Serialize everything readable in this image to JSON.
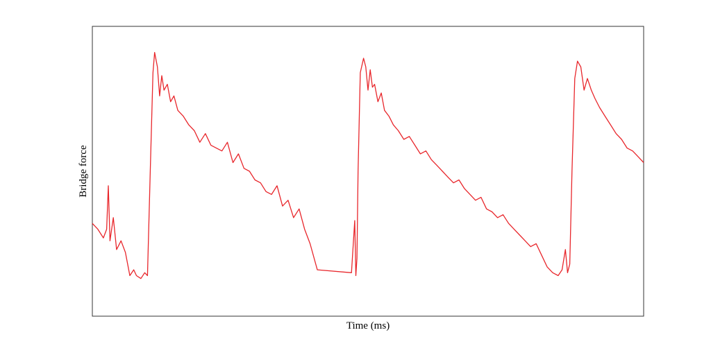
{
  "chart_data": {
    "type": "line",
    "title": "",
    "xlabel": "Time (ms)",
    "ylabel": "Bridge force",
    "xlim": [
      0,
      1
    ],
    "ylim": [
      0,
      1
    ],
    "grid": false,
    "legend": "none",
    "tick_labels": false,
    "line_color": "#e8262b",
    "frame_color": "#333333",
    "series": [
      {
        "values_description_free": true,
        "x": [
          0.0,
          0.01,
          0.02,
          0.026,
          0.029,
          0.032,
          0.038,
          0.044,
          0.052,
          0.06,
          0.068,
          0.075,
          0.08,
          0.088,
          0.095,
          0.1,
          0.105,
          0.11,
          0.113,
          0.118,
          0.122,
          0.126,
          0.13,
          0.136,
          0.142,
          0.148,
          0.155,
          0.165,
          0.175,
          0.185,
          0.195,
          0.205,
          0.215,
          0.225,
          0.235,
          0.245,
          0.255,
          0.265,
          0.275,
          0.285,
          0.295,
          0.305,
          0.315,
          0.325,
          0.335,
          0.345,
          0.355,
          0.365,
          0.375,
          0.385,
          0.395,
          0.408,
          0.47,
          0.476,
          0.478,
          0.48,
          0.482,
          0.486,
          0.492,
          0.496,
          0.5,
          0.504,
          0.508,
          0.512,
          0.518,
          0.524,
          0.53,
          0.538,
          0.546,
          0.555,
          0.565,
          0.575,
          0.585,
          0.595,
          0.605,
          0.615,
          0.625,
          0.635,
          0.645,
          0.655,
          0.665,
          0.675,
          0.685,
          0.695,
          0.705,
          0.715,
          0.725,
          0.735,
          0.745,
          0.755,
          0.765,
          0.775,
          0.785,
          0.795,
          0.805,
          0.815,
          0.825,
          0.835,
          0.845,
          0.852,
          0.858,
          0.862,
          0.866,
          0.87,
          0.875,
          0.88,
          0.886,
          0.892,
          0.898,
          0.905,
          0.912,
          0.92,
          0.93,
          0.94,
          0.95,
          0.96,
          0.97,
          0.98,
          0.99,
          1.0
        ],
        "y": [
          0.32,
          0.3,
          0.27,
          0.3,
          0.45,
          0.26,
          0.34,
          0.23,
          0.26,
          0.22,
          0.14,
          0.16,
          0.14,
          0.13,
          0.15,
          0.14,
          0.5,
          0.84,
          0.91,
          0.86,
          0.76,
          0.83,
          0.78,
          0.8,
          0.74,
          0.76,
          0.71,
          0.69,
          0.66,
          0.64,
          0.6,
          0.63,
          0.59,
          0.58,
          0.57,
          0.6,
          0.53,
          0.56,
          0.51,
          0.5,
          0.47,
          0.46,
          0.43,
          0.42,
          0.45,
          0.38,
          0.4,
          0.34,
          0.37,
          0.3,
          0.25,
          0.16,
          0.15,
          0.33,
          0.14,
          0.2,
          0.5,
          0.84,
          0.89,
          0.86,
          0.78,
          0.85,
          0.79,
          0.8,
          0.74,
          0.77,
          0.71,
          0.69,
          0.66,
          0.64,
          0.61,
          0.62,
          0.59,
          0.56,
          0.57,
          0.54,
          0.52,
          0.5,
          0.48,
          0.46,
          0.47,
          0.44,
          0.42,
          0.4,
          0.41,
          0.37,
          0.36,
          0.34,
          0.35,
          0.32,
          0.3,
          0.28,
          0.26,
          0.24,
          0.25,
          0.21,
          0.17,
          0.15,
          0.14,
          0.16,
          0.23,
          0.15,
          0.18,
          0.5,
          0.82,
          0.88,
          0.86,
          0.78,
          0.82,
          0.78,
          0.75,
          0.72,
          0.69,
          0.66,
          0.63,
          0.61,
          0.58,
          0.57,
          0.55,
          0.53
        ]
      }
    ]
  }
}
